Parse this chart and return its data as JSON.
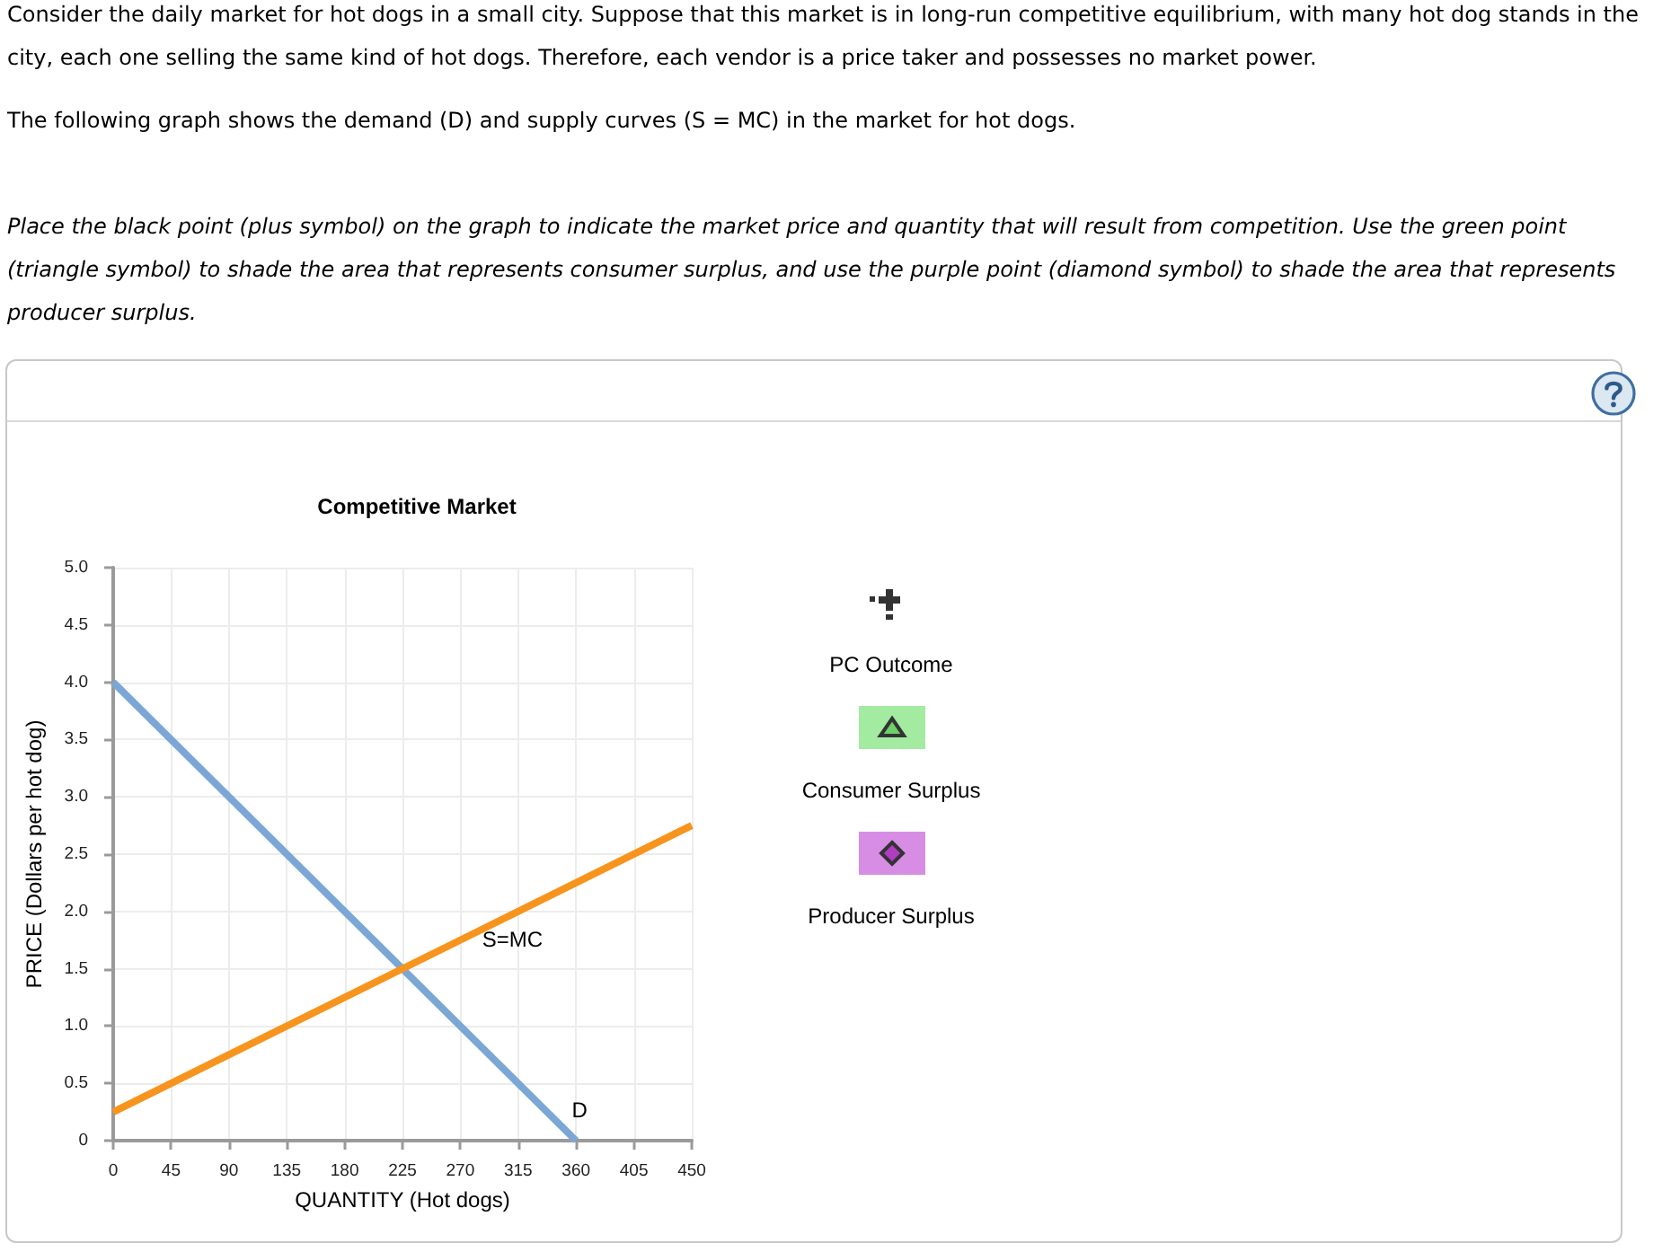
{
  "chart_data": {
    "type": "line",
    "title": "Competitive Market",
    "xlabel": "QUANTITY (Hot dogs)",
    "ylabel": "PRICE (Dollars per hot dog)",
    "annotations": [
      "Consider the daily market for hot dogs in a small city. Suppose that this market is in long-run competitive equilibrium, with many hot dog stands in the city, each one selling the same kind of hot dogs. Therefore, each vendor is a price taker and possesses no market power.",
      "The following graph shows the demand (D) and supply curves (S = MC) in the market for hot dogs.",
      "Place the black point (plus symbol) on the graph to indicate the market price and quantity that will result from competition. Use the green point (triangle symbol) to shade the area that represents consumer surplus, and use the purple point (diamond symbol) to shade the area that represents producer surplus.",
      "PC Outcome",
      "Consumer Surplus",
      "Producer Surplus"
    ],
    "series": [
      {
        "name": "D",
        "color": "#7ba7d6",
        "x": [
          0,
          360
        ],
        "values": [
          4,
          0
        ]
      },
      {
        "name": "S=MC",
        "color": "#f7941d",
        "x": [
          0,
          450
        ],
        "values": [
          0.25,
          2.75
        ]
      }
    ],
    "xlim": [
      0,
      450
    ],
    "xticks": [
      0,
      45,
      90,
      135,
      180,
      225,
      270,
      315,
      360,
      405,
      450
    ],
    "ylim": [
      0,
      5
    ],
    "yticks": [
      0,
      0.5,
      {
        "value": 1,
        "label": "1.0"
      },
      1.5,
      {
        "value": 2,
        "label": "2.0"
      },
      2.5,
      {
        "value": 3,
        "label": "3.0"
      },
      3.5,
      {
        "value": 4,
        "label": "4.0"
      },
      4.5,
      {
        "value": 5,
        "label": "5.0"
      }
    ],
    "grid": true,
    "marker": "none",
    "line_style": "solid"
  }
}
